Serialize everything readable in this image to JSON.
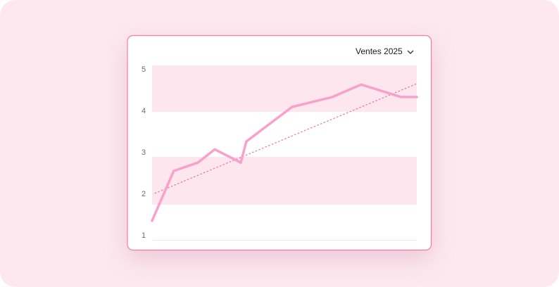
{
  "chart_data": {
    "type": "line",
    "title": "Ventes 2025",
    "x": [
      0,
      8.2,
      17.3,
      23.7,
      33.5,
      35.6,
      52.9,
      68.1,
      79,
      94.1,
      100
    ],
    "values": [
      1.36,
      2.56,
      2.76,
      3.08,
      2.76,
      3.27,
      4.1,
      4.34,
      4.64,
      4.34,
      4.34
    ],
    "color": "#f8a1cb",
    "trendline": {
      "x": [
        1,
        100
      ],
      "values": [
        2.02,
        4.66
      ],
      "color": "#ef6ea8",
      "dashed": true
    },
    "xlim": [
      0,
      100
    ],
    "ylim": [
      0.9,
      5.1
    ],
    "yticks": [
      1,
      2,
      3,
      4,
      5
    ]
  }
}
